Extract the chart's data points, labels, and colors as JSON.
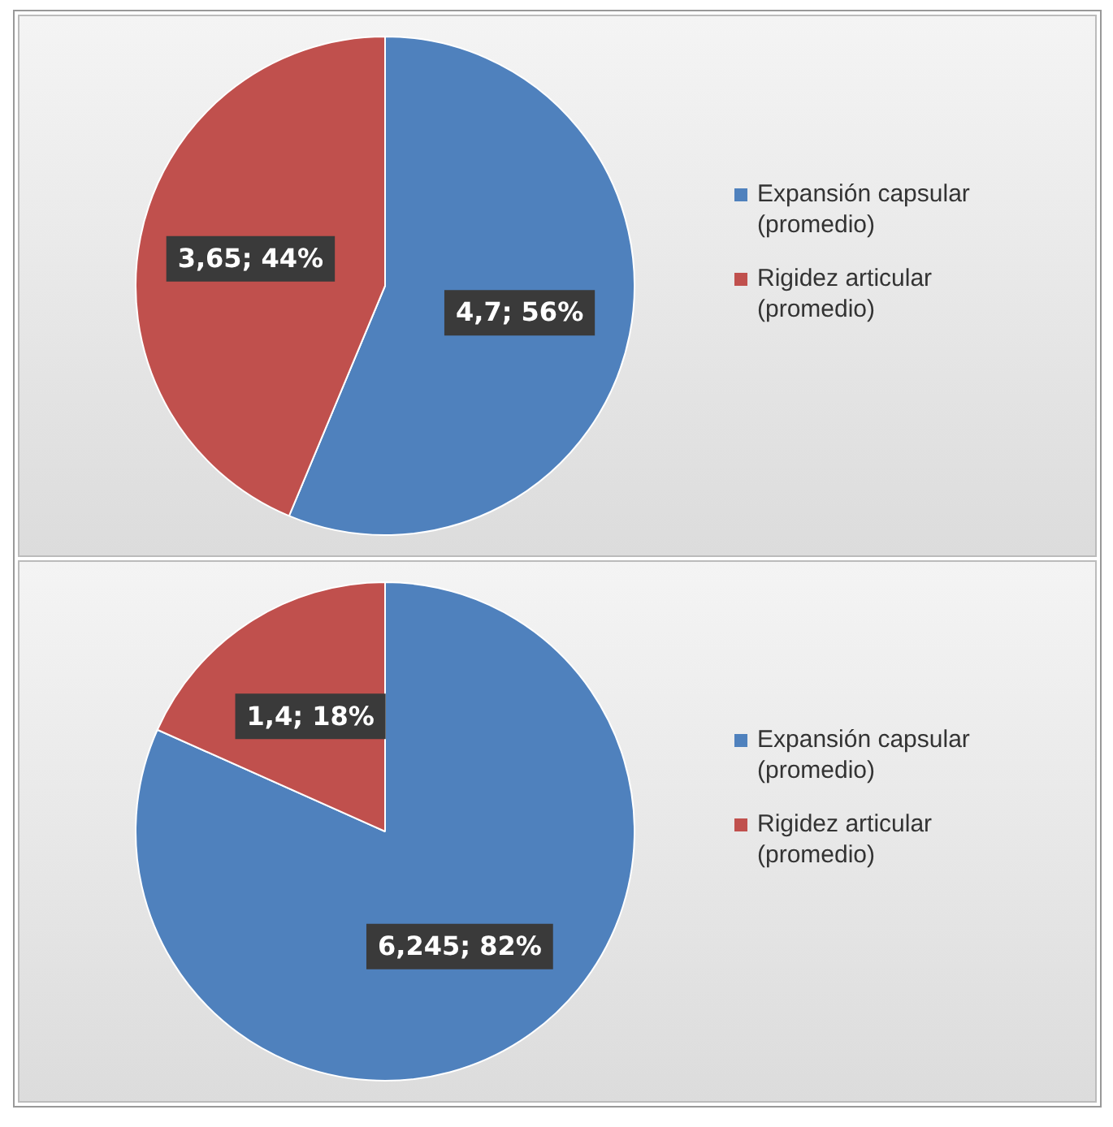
{
  "chart_data": [
    {
      "type": "pie",
      "categories": [
        "Expansión capsular (promedio)",
        "Rigidez articular (promedio)"
      ],
      "values": [
        4.7,
        3.65
      ],
      "colors": [
        "#4f81bd",
        "#c0504d"
      ],
      "value_labels": [
        "4,7; 56%",
        "3,65; 44%"
      ],
      "legend": "right"
    },
    {
      "type": "pie",
      "categories": [
        "Expansión capsular (promedio)",
        "Rigidez articular (promedio)"
      ],
      "values": [
        6.245,
        1.4
      ],
      "colors": [
        "#4f81bd",
        "#c0504d"
      ],
      "value_labels": [
        "6,245; 82%",
        "1,4; 18%"
      ],
      "legend": "right"
    }
  ]
}
